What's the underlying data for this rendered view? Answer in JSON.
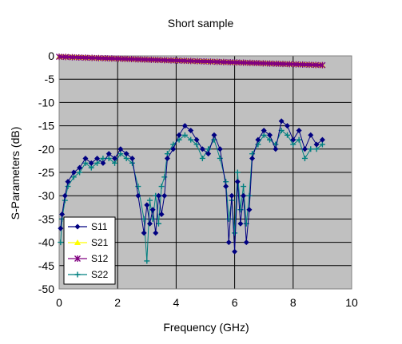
{
  "chart_data": {
    "type": "line",
    "title": "Short sample",
    "xlabel": "Frequency (GHz)",
    "ylabel": "S-Parameters (dB)",
    "xlim": [
      0,
      10
    ],
    "ylim": [
      -50,
      0
    ],
    "xticks": [
      "0",
      "2",
      "4",
      "6",
      "8",
      "10"
    ],
    "yticks": [
      "0",
      "-5",
      "-10",
      "-15",
      "-20",
      "-25",
      "-30",
      "-35",
      "-40",
      "-45",
      "-50"
    ],
    "grid": true,
    "plot_background": "#c0c0c0",
    "legend_position": "bottom-left",
    "series": [
      {
        "name": "S11",
        "color": "#000080",
        "marker": "diamond",
        "x": [
          0.05,
          0.1,
          0.2,
          0.3,
          0.5,
          0.7,
          0.9,
          1.1,
          1.3,
          1.5,
          1.7,
          1.9,
          2.1,
          2.3,
          2.5,
          2.7,
          2.9,
          3.0,
          3.1,
          3.2,
          3.3,
          3.4,
          3.5,
          3.6,
          3.7,
          3.9,
          4.1,
          4.3,
          4.5,
          4.7,
          4.9,
          5.1,
          5.3,
          5.5,
          5.7,
          5.8,
          5.9,
          6.0,
          6.1,
          6.2,
          6.3,
          6.4,
          6.5,
          6.6,
          6.8,
          7.0,
          7.2,
          7.4,
          7.6,
          7.8,
          8.0,
          8.2,
          8.4,
          8.6,
          8.8,
          9.0
        ],
        "y": [
          -37,
          -34,
          -30,
          -27,
          -25,
          -24,
          -22,
          -23,
          -22,
          -23,
          -21,
          -22,
          -20,
          -21,
          -22,
          -30,
          -38,
          -32,
          -36,
          -33,
          -38,
          -30,
          -34,
          -30,
          -22,
          -20,
          -17,
          -15,
          -16,
          -18,
          -20,
          -21,
          -17,
          -20,
          -28,
          -40,
          -30,
          -42,
          -27,
          -36,
          -30,
          -40,
          -33,
          -22,
          -18,
          -16,
          -17,
          -20,
          -14,
          -15,
          -18,
          -16,
          -20,
          -17,
          -19,
          -18
        ]
      },
      {
        "name": "S21",
        "color": "#ffff00",
        "marker": "triangle",
        "x": [
          0,
          9
        ],
        "y": [
          -0.2,
          -2.0
        ]
      },
      {
        "name": "S12",
        "color": "#800080",
        "marker": "star",
        "x": [
          0,
          9
        ],
        "y": [
          -0.2,
          -2.0
        ]
      },
      {
        "name": "S22",
        "color": "#008080",
        "marker": "plus",
        "x": [
          0.05,
          0.1,
          0.2,
          0.3,
          0.5,
          0.7,
          0.9,
          1.1,
          1.3,
          1.5,
          1.7,
          1.9,
          2.1,
          2.3,
          2.5,
          2.7,
          2.9,
          3.0,
          3.1,
          3.2,
          3.3,
          3.4,
          3.5,
          3.6,
          3.7,
          3.9,
          4.1,
          4.3,
          4.5,
          4.7,
          4.9,
          5.1,
          5.3,
          5.5,
          5.7,
          5.8,
          5.9,
          6.0,
          6.1,
          6.2,
          6.3,
          6.4,
          6.5,
          6.6,
          6.8,
          7.0,
          7.2,
          7.4,
          7.6,
          7.8,
          8.0,
          8.2,
          8.4,
          8.6,
          8.8,
          9.0
        ],
        "y": [
          -40,
          -35,
          -31,
          -28,
          -26,
          -25,
          -23,
          -24,
          -23,
          -22,
          -22,
          -23,
          -21,
          -22,
          -23,
          -28,
          -35,
          -44,
          -31,
          -35,
          -30,
          -36,
          -28,
          -26,
          -21,
          -19,
          -18,
          -17,
          -18,
          -19,
          -22,
          -20,
          -18,
          -22,
          -27,
          -35,
          -31,
          -38,
          -25,
          -33,
          -28,
          -36,
          -30,
          -21,
          -19,
          -17,
          -18,
          -19,
          -16,
          -17,
          -19,
          -18,
          -22,
          -20,
          -20,
          -19
        ]
      }
    ]
  }
}
